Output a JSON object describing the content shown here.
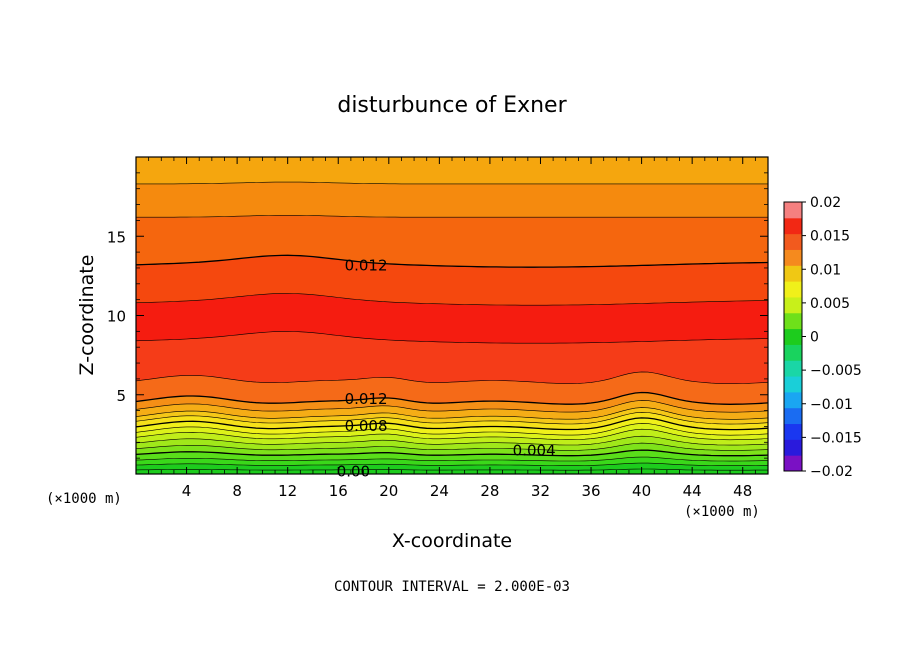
{
  "chart_data": {
    "type": "heatmap",
    "title": "disturbunce of Exner",
    "xlabel": "X-coordinate",
    "ylabel": "Z-coordinate",
    "x_unit_left": "(×1000 m)",
    "x_unit_right": "(×1000 m)",
    "footer": "CONTOUR INTERVAL = 2.000E-03",
    "xlim": [
      0,
      50
    ],
    "ylim": [
      0,
      20
    ],
    "x_ticks": [
      4,
      8,
      12,
      16,
      20,
      24,
      28,
      32,
      36,
      40,
      44,
      48
    ],
    "x_tick_labels": [
      "4",
      "8",
      "12",
      "16",
      "20",
      "24",
      "28",
      "32",
      "36",
      "40",
      "44",
      "48"
    ],
    "y_ticks": [
      5,
      10,
      15
    ],
    "y_tick_labels": [
      "5",
      "10",
      "15"
    ],
    "colorbar": {
      "min": -0.02,
      "max": 0.02,
      "step": 0.0025,
      "tick_values": [
        -0.02,
        -0.015,
        -0.01,
        -0.005,
        0,
        0.005,
        0.01,
        0.015,
        0.02
      ],
      "tick_labels": [
        "−0.02",
        "−0.015",
        "−0.01",
        "−0.005",
        "0",
        "0.005",
        "0.01",
        "0.015",
        "0.02"
      ],
      "colors": [
        "#7a11c4",
        "#2a1adc",
        "#1a37f0",
        "#1a6cf2",
        "#1aa6f2",
        "#1acfd8",
        "#1ad6a6",
        "#19d35e",
        "#1dcc1d",
        "#6ee01a",
        "#c8f01a",
        "#f0f01a",
        "#f0c814",
        "#f58a1e",
        "#f25a1e",
        "#f22814",
        "#f58080"
      ]
    },
    "contour_labels": [
      {
        "text": "0.012",
        "x": 18.2,
        "z": 13.0
      },
      {
        "text": "0.012",
        "x": 18.2,
        "z": 4.5
      },
      {
        "text": "0.008",
        "x": 18.2,
        "z": 2.8
      },
      {
        "text": "0.004",
        "x": 31.5,
        "z": 1.5
      },
      {
        "text": "0.00",
        "x": 17.2,
        "z": 0.15
      }
    ],
    "contour_levels_z": [
      0.25,
      0.55,
      0.85,
      1.2,
      1.55,
      1.9,
      2.25,
      2.55,
      2.9,
      3.25,
      3.55,
      4.0,
      4.5,
      5.8,
      8.4,
      10.8,
      13.2,
      16.2,
      18.3
    ]
  }
}
